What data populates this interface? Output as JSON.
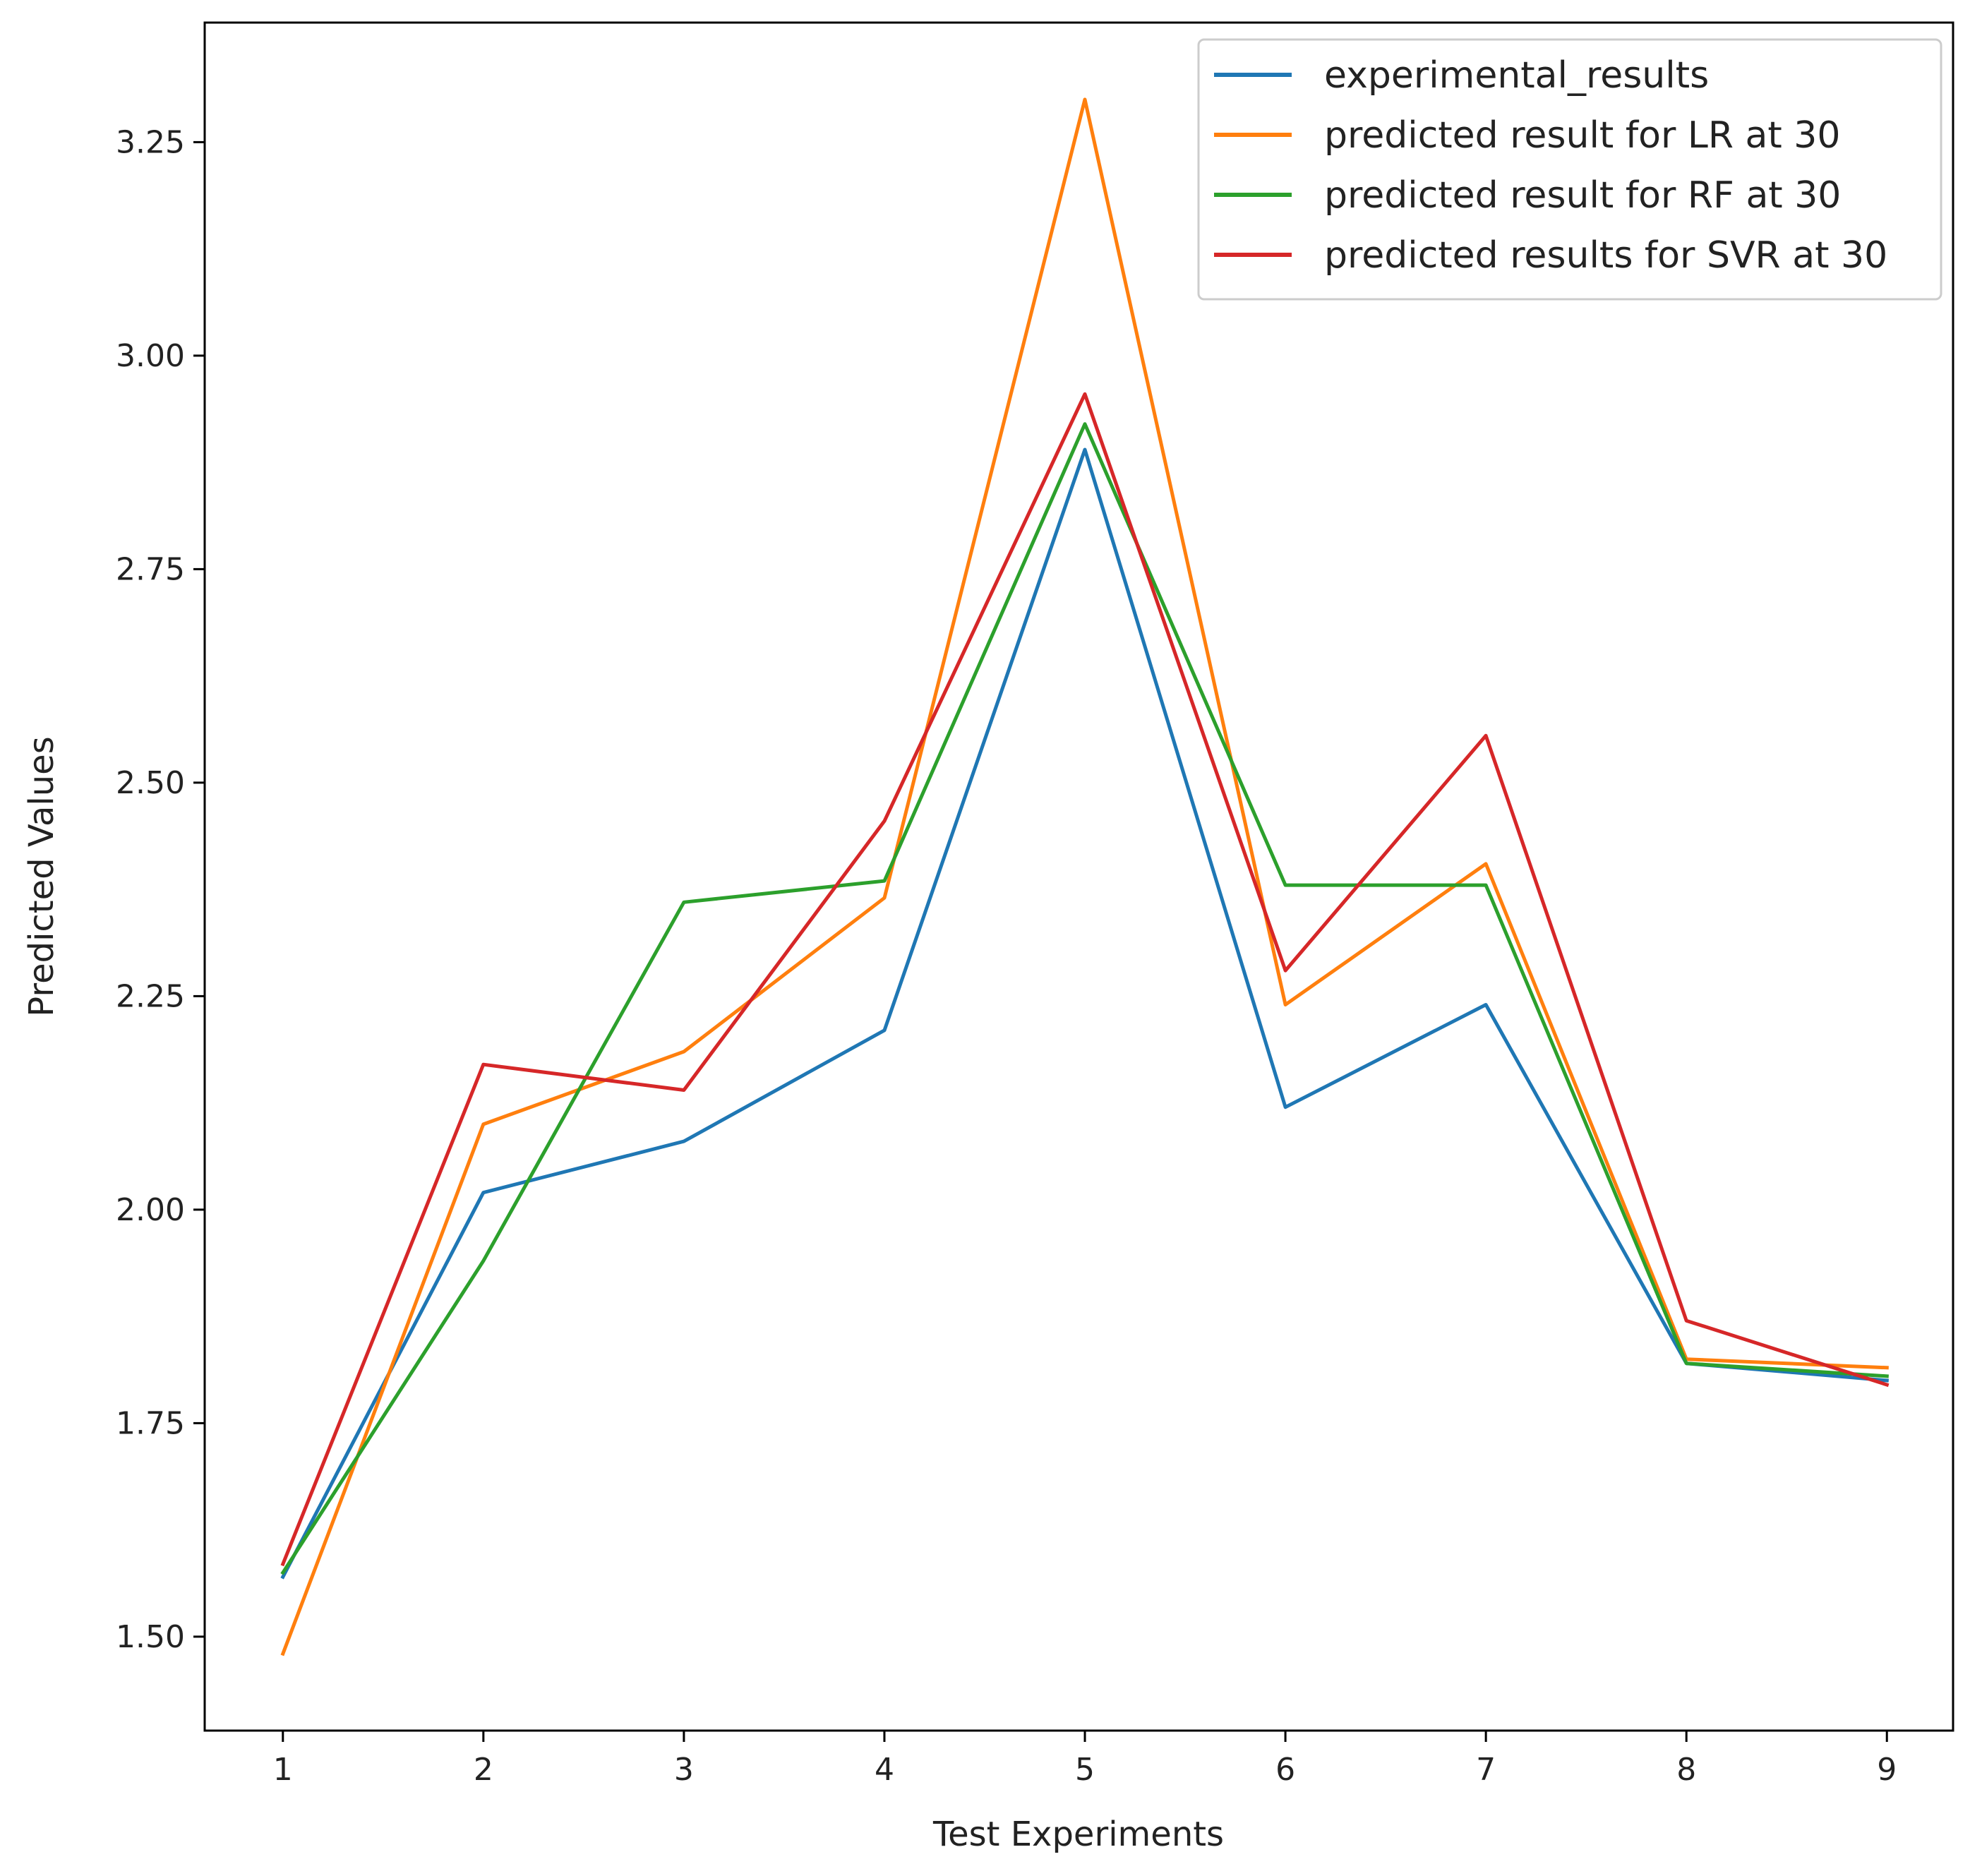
{
  "chart_data": {
    "type": "line",
    "title": "",
    "xlabel": "Test Experiments",
    "ylabel": "Predicted Values",
    "x": [
      1,
      2,
      3,
      4,
      5,
      6,
      7,
      8,
      9
    ],
    "x_ticks": [
      "1",
      "2",
      "3",
      "4",
      "5",
      "6",
      "7",
      "8",
      "9"
    ],
    "y_ticks": [
      "1.50",
      "1.75",
      "2.00",
      "2.25",
      "2.50",
      "2.75",
      "3.00",
      "3.25"
    ],
    "y_tick_values": [
      1.5,
      1.75,
      2.0,
      2.25,
      2.5,
      2.75,
      3.0,
      3.25
    ],
    "xlim": [
      0.61,
      9.33
    ],
    "ylim": [
      1.39,
      3.39
    ],
    "grid": false,
    "legend_position": "top-right",
    "series": [
      {
        "name": "experimental_results",
        "color": "#1f77b4",
        "values": [
          1.57,
          2.02,
          2.08,
          2.21,
          2.89,
          2.12,
          2.24,
          1.82,
          1.8
        ]
      },
      {
        "name": "predicted result for LR at 30",
        "color": "#ff7f0e",
        "values": [
          1.48,
          2.1,
          2.185,
          2.365,
          3.3,
          2.24,
          2.405,
          1.825,
          1.815
        ]
      },
      {
        "name": "predicted result for RF at 30",
        "color": "#2ca02c",
        "values": [
          1.575,
          1.94,
          2.36,
          2.385,
          2.92,
          2.38,
          2.38,
          1.82,
          1.805
        ]
      },
      {
        "name": "predicted results for SVR at 30",
        "color": "#d62728",
        "values": [
          1.585,
          2.17,
          2.14,
          2.455,
          2.955,
          2.28,
          2.555,
          1.87,
          1.795
        ]
      }
    ]
  }
}
